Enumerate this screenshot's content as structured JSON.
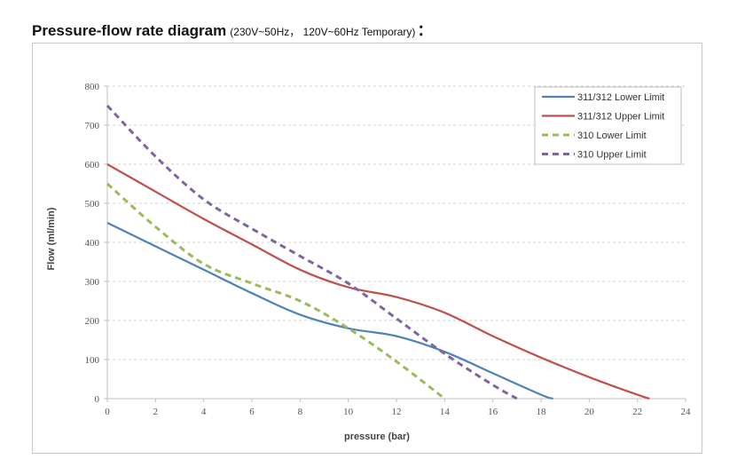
{
  "heading": {
    "title": "Pressure-flow rate diagram",
    "subtitle": "(230V~50Hz， 120V~60Hz Temporary)",
    "colon": "："
  },
  "chart_data": {
    "type": "line",
    "xlabel": "pressure (bar)",
    "ylabel": "Flow (ml/min)",
    "xlim": [
      0,
      24
    ],
    "ylim": [
      0,
      800
    ],
    "xticks": [
      0,
      2,
      4,
      6,
      8,
      10,
      12,
      14,
      16,
      18,
      20,
      22,
      24
    ],
    "yticks": [
      0,
      100,
      200,
      300,
      400,
      500,
      600,
      700,
      800
    ],
    "grid": "horizontal dashed",
    "legend_position": "top-right",
    "series": [
      {
        "name": "311/312 Lower Limit",
        "color": "#4f81bd",
        "dash": "solid",
        "x": [
          0,
          2,
          4,
          6,
          8,
          10,
          12,
          14,
          16,
          18,
          18.5
        ],
        "y": [
          450,
          390,
          330,
          270,
          215,
          180,
          160,
          120,
          65,
          10,
          0
        ]
      },
      {
        "name": "311/312 Upper Limit",
        "color": "#c0504d",
        "dash": "solid",
        "x": [
          0,
          2,
          4,
          6,
          8,
          10,
          12,
          14,
          16,
          18,
          20,
          22,
          22.5
        ],
        "y": [
          600,
          530,
          460,
          395,
          330,
          285,
          260,
          220,
          160,
          105,
          55,
          10,
          0
        ]
      },
      {
        "name": "310 Lower Limit",
        "color": "#9bbb59",
        "dash": "dashed",
        "x": [
          0,
          2,
          4,
          6,
          8,
          10,
          12,
          14
        ],
        "y": [
          550,
          440,
          345,
          295,
          250,
          180,
          95,
          0
        ]
      },
      {
        "name": "310 Upper Limit",
        "color": "#8064a2",
        "dash": "dashed",
        "x": [
          0,
          2,
          4,
          6,
          8,
          10,
          12,
          14,
          16,
          17
        ],
        "y": [
          750,
          620,
          510,
          435,
          365,
          295,
          205,
          115,
          35,
          0
        ]
      }
    ]
  }
}
